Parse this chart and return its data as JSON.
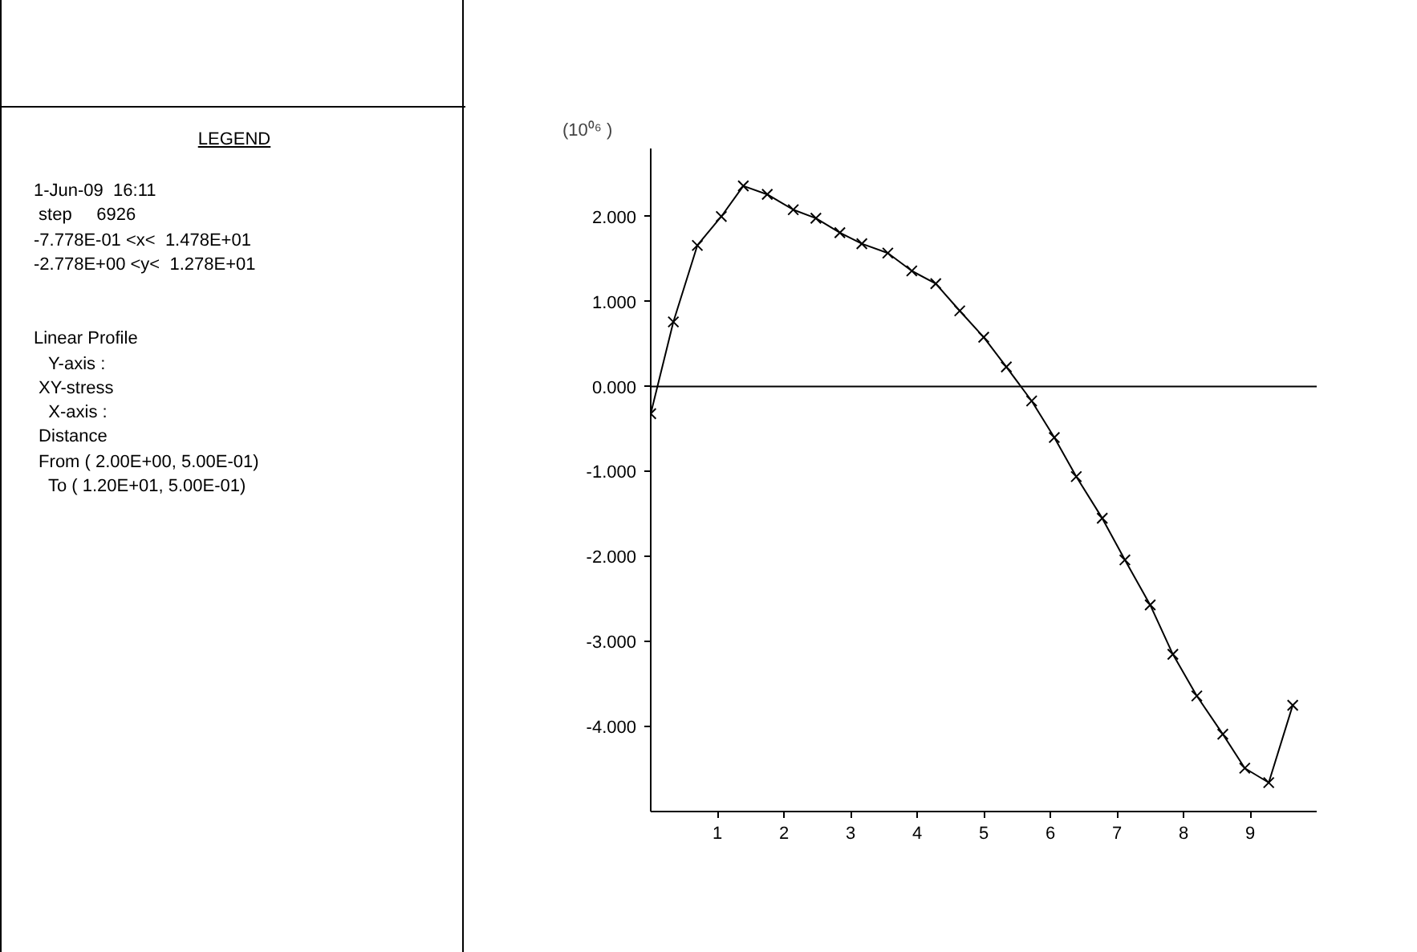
{
  "chart_data": {
    "type": "line",
    "ylabel": "(10⁰⁶ )",
    "marker": "cross",
    "line_style": "solid",
    "grid": false,
    "annotations": [
      "LEGEND",
      "1-Jun-09  16:11",
      " step     6926",
      "-7.778E-01 <x<  1.478E+01",
      "-2.778E+00 <y<  1.278E+01",
      "Linear Profile",
      "   Y-axis :",
      " XY-stress",
      "   X-axis :",
      " Distance",
      " From ( 2.00E+00, 5.00E-01)",
      "   To ( 1.20E+01, 5.00E-01)"
    ],
    "x": [
      0,
      0.34,
      0.7,
      1.06,
      1.39,
      1.75,
      2.14,
      2.48,
      2.84,
      3.17,
      3.56,
      3.92,
      4.28,
      4.64,
      5.0,
      5.34,
      5.72,
      6.06,
      6.39,
      6.78,
      7.12,
      7.5,
      7.84,
      8.2,
      8.59,
      8.92,
      9.28,
      9.64
    ],
    "series": [
      {
        "color": "#000000",
        "values": [
          -0.32,
          0.76,
          1.66,
          2.0,
          2.36,
          2.26,
          2.08,
          1.98,
          1.81,
          1.68,
          1.57,
          1.36,
          1.21,
          0.89,
          0.58,
          0.23,
          -0.17,
          -0.6,
          -1.06,
          -1.55,
          -2.04,
          -2.57,
          -3.15,
          -3.64,
          -4.09,
          -4.49,
          -4.66,
          -3.75
        ]
      }
    ],
    "xlim": [
      0,
      10
    ],
    "ylim": [
      -5,
      2.8
    ],
    "xticks": [
      1,
      2,
      3,
      4,
      5,
      6,
      7,
      8,
      9
    ],
    "yticks": [
      {
        "value": -4,
        "label": "-4.000"
      },
      {
        "value": -3,
        "label": "-3.000"
      },
      {
        "value": -2,
        "label": "-2.000"
      },
      {
        "value": -1,
        "label": "-1.000"
      },
      {
        "value": 0,
        "label": "0.000"
      },
      {
        "value": 1,
        "label": "1.000"
      },
      {
        "value": 2,
        "label": "2.000"
      }
    ],
    "ref_lines": [
      {
        "axis": "y",
        "value": 0,
        "color": "#000000"
      }
    ]
  }
}
